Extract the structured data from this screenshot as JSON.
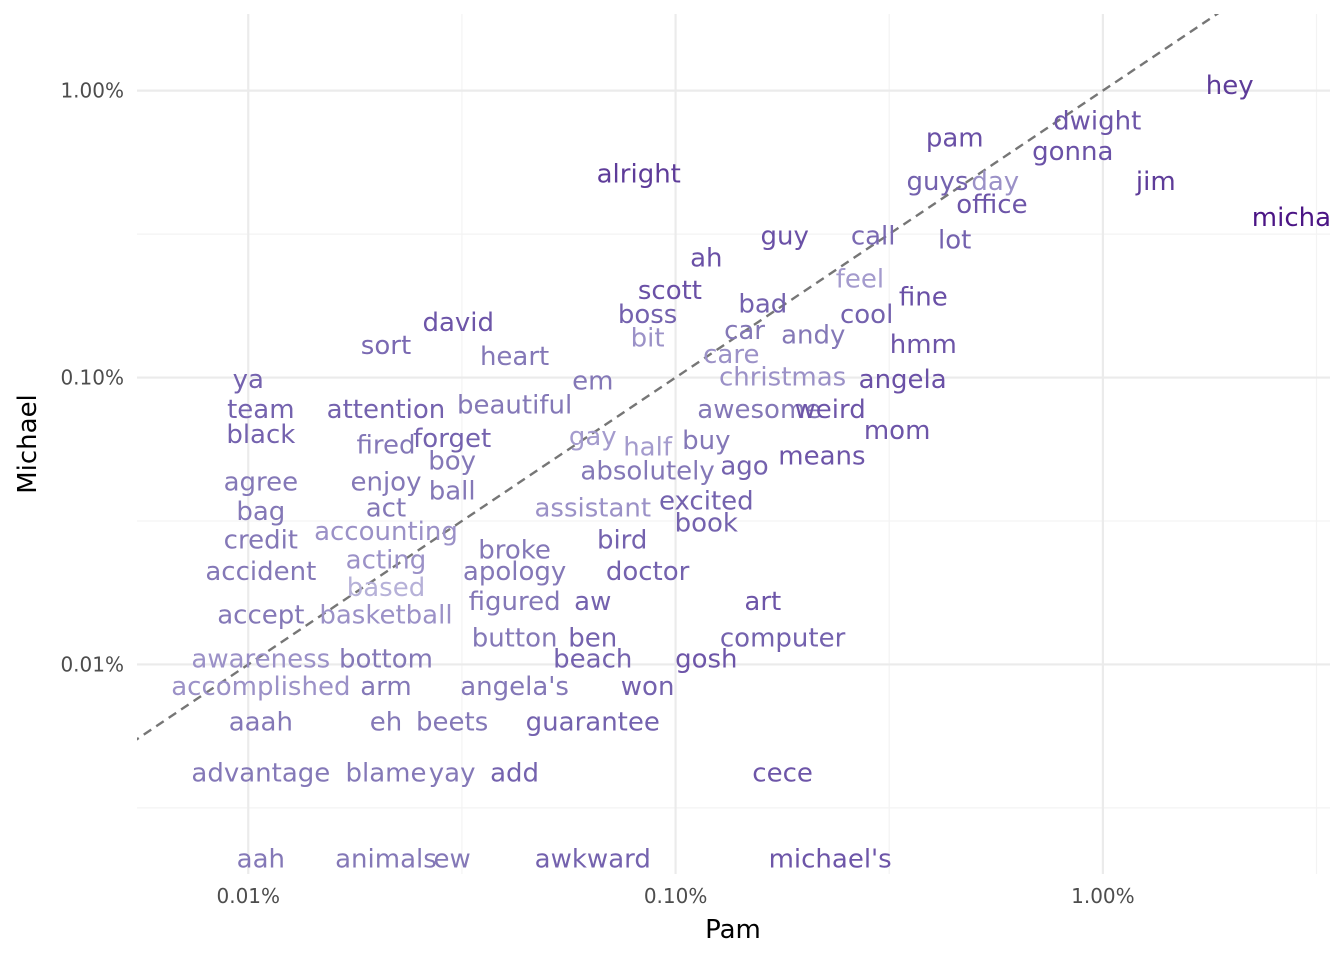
{
  "chart_data": {
    "type": "scatter",
    "title": "",
    "xlabel": "Pam",
    "ylabel": "Michael",
    "x_scale": "log10",
    "y_scale": "log10",
    "xlim": [
      5.49e-05,
      0.034
    ],
    "ylim": [
      1.86e-05,
      0.0185
    ],
    "x_ticks": [
      {
        "value": 0.0001,
        "label": "0.01%"
      },
      {
        "value": 0.001,
        "label": "0.10%"
      },
      {
        "value": 0.01,
        "label": "1.00%"
      }
    ],
    "y_ticks": [
      {
        "value": 0.0001,
        "label": "0.01%"
      },
      {
        "value": 0.001,
        "label": "0.10%"
      },
      {
        "value": 0.01,
        "label": "1.00%"
      }
    ],
    "reference_line": {
      "type": "identity",
      "style": "dashed",
      "color": "#767676"
    },
    "grid": true,
    "color_scale": {
      "low": "#b6b1d8",
      "high": "#4b1585"
    },
    "points": [
      {
        "word": "hey",
        "x": 0.0198,
        "y": 0.0104,
        "color": "#5e3c99"
      },
      {
        "word": "pam",
        "x": 0.0045,
        "y": 0.0068,
        "color": "#6a50a6"
      },
      {
        "word": "dwight",
        "x": 0.0097,
        "y": 0.0078,
        "color": "#6d55a8"
      },
      {
        "word": "gonna",
        "x": 0.0085,
        "y": 0.0061,
        "color": "#6b52a7"
      },
      {
        "word": "alright",
        "x": 0.00082,
        "y": 0.0051,
        "color": "#5e3c99"
      },
      {
        "word": "guys",
        "x": 0.0041,
        "y": 0.0048,
        "color": "#7462ae"
      },
      {
        "word": "day",
        "x": 0.0056,
        "y": 0.0048,
        "color": "#9b91c7"
      },
      {
        "word": "jim",
        "x": 0.0133,
        "y": 0.0048,
        "color": "#5e3c99"
      },
      {
        "word": "office",
        "x": 0.0055,
        "y": 0.004,
        "color": "#6d55a8"
      },
      {
        "word": "michael",
        "x": 0.0294,
        "y": 0.0036,
        "color": "#4b1585"
      },
      {
        "word": "guy",
        "x": 0.0018,
        "y": 0.0031,
        "color": "#6a50a6"
      },
      {
        "word": "call",
        "x": 0.0029,
        "y": 0.0031,
        "color": "#7a69b2"
      },
      {
        "word": "lot",
        "x": 0.0045,
        "y": 0.003,
        "color": "#7462ae"
      },
      {
        "word": "ah",
        "x": 0.00118,
        "y": 0.0026,
        "color": "#6a50a6"
      },
      {
        "word": "feel",
        "x": 0.0027,
        "y": 0.0022,
        "color": "#a49bcd"
      },
      {
        "word": "scott",
        "x": 0.00097,
        "y": 0.002,
        "color": "#6a50a6"
      },
      {
        "word": "bad",
        "x": 0.0016,
        "y": 0.0018,
        "color": "#7462ae"
      },
      {
        "word": "fine",
        "x": 0.0038,
        "y": 0.0019,
        "color": "#6a50a6"
      },
      {
        "word": "boss",
        "x": 0.00086,
        "y": 0.00165,
        "color": "#7462ae"
      },
      {
        "word": "cool",
        "x": 0.0028,
        "y": 0.00165,
        "color": "#7462ae"
      },
      {
        "word": "david",
        "x": 0.00031,
        "y": 0.00155,
        "color": "#6d55a8"
      },
      {
        "word": "car",
        "x": 0.00145,
        "y": 0.00145,
        "color": "#8478b7"
      },
      {
        "word": "bit",
        "x": 0.00086,
        "y": 0.00137,
        "color": "#9b91c7"
      },
      {
        "word": "andy",
        "x": 0.0021,
        "y": 0.0014,
        "color": "#8478b7"
      },
      {
        "word": "sort",
        "x": 0.00021,
        "y": 0.00129,
        "color": "#7a69b2"
      },
      {
        "word": "hmm",
        "x": 0.0038,
        "y": 0.0013,
        "color": "#6d55a8"
      },
      {
        "word": "care",
        "x": 0.00135,
        "y": 0.0012,
        "color": "#9b91c7"
      },
      {
        "word": "heart",
        "x": 0.00042,
        "y": 0.00118,
        "color": "#8478b7"
      },
      {
        "word": "christmas",
        "x": 0.00178,
        "y": 0.001,
        "color": "#9b91c7"
      },
      {
        "word": "ya",
        "x": 0.0001,
        "y": 0.00098,
        "color": "#7462ae"
      },
      {
        "word": "em",
        "x": 0.00064,
        "y": 0.00097,
        "color": "#8478b7"
      },
      {
        "word": "angela",
        "x": 0.0034,
        "y": 0.00098,
        "color": "#6a50a6"
      },
      {
        "word": "team",
        "x": 0.000107,
        "y": 0.00077,
        "color": "#7462ae"
      },
      {
        "word": "attention",
        "x": 0.00021,
        "y": 0.00077,
        "color": "#7462ae"
      },
      {
        "word": "beautiful",
        "x": 0.00042,
        "y": 0.0008,
        "color": "#8478b7"
      },
      {
        "word": "awesome",
        "x": 0.00157,
        "y": 0.00077,
        "color": "#8478b7"
      },
      {
        "word": "weird",
        "x": 0.0023,
        "y": 0.00077,
        "color": "#6d55a8"
      },
      {
        "word": "black",
        "x": 0.000107,
        "y": 0.00063,
        "color": "#7462ae"
      },
      {
        "word": "fired",
        "x": 0.00021,
        "y": 0.00058,
        "color": "#8478b7"
      },
      {
        "word": "forget",
        "x": 0.0003,
        "y": 0.00061,
        "color": "#7462ae"
      },
      {
        "word": "gay",
        "x": 0.00064,
        "y": 0.00062,
        "color": "#a49bcd"
      },
      {
        "word": "half",
        "x": 0.00086,
        "y": 0.00057,
        "color": "#a49bcd"
      },
      {
        "word": "buy",
        "x": 0.00118,
        "y": 0.0006,
        "color": "#8478b7"
      },
      {
        "word": "mom",
        "x": 0.0033,
        "y": 0.00065,
        "color": "#6d55a8"
      },
      {
        "word": "boy",
        "x": 0.0003,
        "y": 0.00051,
        "color": "#8478b7"
      },
      {
        "word": "means",
        "x": 0.0022,
        "y": 0.00053,
        "color": "#6d55a8"
      },
      {
        "word": "ago",
        "x": 0.00145,
        "y": 0.00049,
        "color": "#7462ae"
      },
      {
        "word": "absolutely",
        "x": 0.00086,
        "y": 0.00047,
        "color": "#8478b7"
      },
      {
        "word": "agree",
        "x": 0.000107,
        "y": 0.00043,
        "color": "#8478b7"
      },
      {
        "word": "enjoy",
        "x": 0.00021,
        "y": 0.00043,
        "color": "#8478b7"
      },
      {
        "word": "ball",
        "x": 0.0003,
        "y": 0.0004,
        "color": "#8478b7"
      },
      {
        "word": "act",
        "x": 0.00021,
        "y": 0.00035,
        "color": "#8478b7"
      },
      {
        "word": "assistant",
        "x": 0.00064,
        "y": 0.00035,
        "color": "#9b91c7"
      },
      {
        "word": "excited",
        "x": 0.00118,
        "y": 0.00037,
        "color": "#7462ae"
      },
      {
        "word": "bag",
        "x": 0.000107,
        "y": 0.00034,
        "color": "#8478b7"
      },
      {
        "word": "book",
        "x": 0.00118,
        "y": 0.00031,
        "color": "#7462ae"
      },
      {
        "word": "accounting",
        "x": 0.00021,
        "y": 0.00029,
        "color": "#9b91c7"
      },
      {
        "word": "credit",
        "x": 0.000107,
        "y": 0.00027,
        "color": "#8478b7"
      },
      {
        "word": "bird",
        "x": 0.00075,
        "y": 0.00027,
        "color": "#7462ae"
      },
      {
        "word": "broke",
        "x": 0.00042,
        "y": 0.00025,
        "color": "#8478b7"
      },
      {
        "word": "acting",
        "x": 0.00021,
        "y": 0.00023,
        "color": "#9b91c7"
      },
      {
        "word": "accident",
        "x": 0.000107,
        "y": 0.00021,
        "color": "#8478b7"
      },
      {
        "word": "apology",
        "x": 0.00042,
        "y": 0.00021,
        "color": "#8478b7"
      },
      {
        "word": "doctor",
        "x": 0.00086,
        "y": 0.00021,
        "color": "#7462ae"
      },
      {
        "word": "based",
        "x": 0.00021,
        "y": 0.000185,
        "color": "#b6b1d8"
      },
      {
        "word": "figured",
        "x": 0.00042,
        "y": 0.000165,
        "color": "#8478b7"
      },
      {
        "word": "aw",
        "x": 0.00064,
        "y": 0.000165,
        "color": "#7462ae"
      },
      {
        "word": "art",
        "x": 0.0016,
        "y": 0.000165,
        "color": "#6d55a8"
      },
      {
        "word": "accept",
        "x": 0.000107,
        "y": 0.000148,
        "color": "#8478b7"
      },
      {
        "word": "basketball",
        "x": 0.00021,
        "y": 0.000148,
        "color": "#9b91c7"
      },
      {
        "word": "button",
        "x": 0.00042,
        "y": 0.000123,
        "color": "#8478b7"
      },
      {
        "word": "ben",
        "x": 0.00064,
        "y": 0.000123,
        "color": "#7462ae"
      },
      {
        "word": "computer",
        "x": 0.00178,
        "y": 0.000123,
        "color": "#7462ae"
      },
      {
        "word": "awareness",
        "x": 0.000107,
        "y": 0.000104,
        "color": "#9b91c7"
      },
      {
        "word": "bottom",
        "x": 0.00021,
        "y": 0.000104,
        "color": "#8478b7"
      },
      {
        "word": "beach",
        "x": 0.00064,
        "y": 0.000104,
        "color": "#7462ae"
      },
      {
        "word": "gosh",
        "x": 0.00118,
        "y": 0.000104,
        "color": "#6d55a8"
      },
      {
        "word": "accomplished",
        "x": 0.000107,
        "y": 8.35e-05,
        "color": "#9b91c7"
      },
      {
        "word": "arm",
        "x": 0.00021,
        "y": 8.35e-05,
        "color": "#8478b7"
      },
      {
        "word": "angela's",
        "x": 0.00042,
        "y": 8.35e-05,
        "color": "#8478b7"
      },
      {
        "word": "won",
        "x": 0.00086,
        "y": 8.35e-05,
        "color": "#7462ae"
      },
      {
        "word": "aaah",
        "x": 0.000107,
        "y": 6.27e-05,
        "color": "#8478b7"
      },
      {
        "word": "eh",
        "x": 0.00021,
        "y": 6.27e-05,
        "color": "#8478b7"
      },
      {
        "word": "beets",
        "x": 0.0003,
        "y": 6.27e-05,
        "color": "#8478b7"
      },
      {
        "word": "guarantee",
        "x": 0.00064,
        "y": 6.27e-05,
        "color": "#7462ae"
      },
      {
        "word": "advantage",
        "x": 0.000107,
        "y": 4.17e-05,
        "color": "#8478b7"
      },
      {
        "word": "blame",
        "x": 0.00021,
        "y": 4.17e-05,
        "color": "#8478b7"
      },
      {
        "word": "yay",
        "x": 0.0003,
        "y": 4.17e-05,
        "color": "#8478b7"
      },
      {
        "word": "add",
        "x": 0.00042,
        "y": 4.17e-05,
        "color": "#7462ae"
      },
      {
        "word": "cece",
        "x": 0.00178,
        "y": 4.17e-05,
        "color": "#6d55a8"
      },
      {
        "word": "aah",
        "x": 0.000107,
        "y": 2.09e-05,
        "color": "#8478b7"
      },
      {
        "word": "animals",
        "x": 0.00021,
        "y": 2.09e-05,
        "color": "#8478b7"
      },
      {
        "word": "ew",
        "x": 0.0003,
        "y": 2.09e-05,
        "color": "#8478b7"
      },
      {
        "word": "awkward",
        "x": 0.00064,
        "y": 2.09e-05,
        "color": "#7462ae"
      },
      {
        "word": "michael's",
        "x": 0.0023,
        "y": 2.09e-05,
        "color": "#6d55a8"
      }
    ]
  }
}
